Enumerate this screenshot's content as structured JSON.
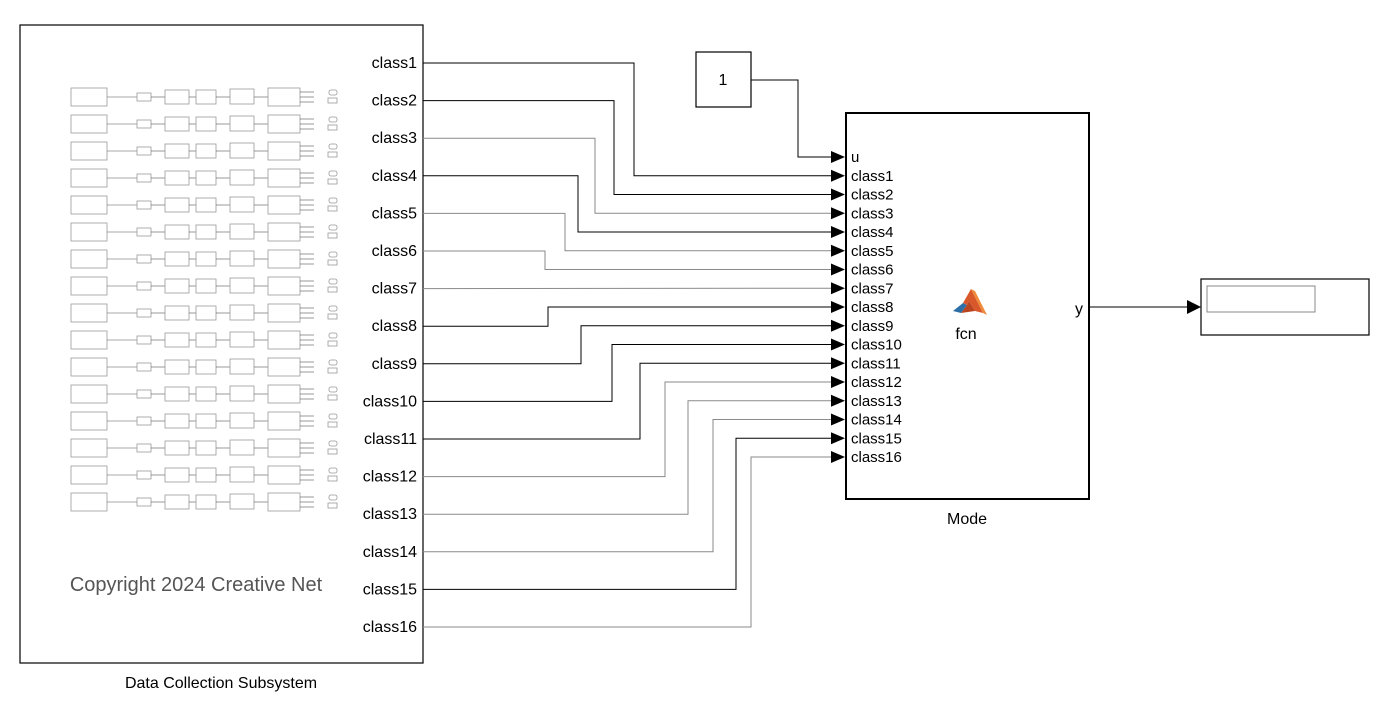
{
  "subsystem": {
    "caption": "Data Collection Subsystem",
    "copyright": "Copyright 2024 Creative Net",
    "output_ports": [
      "class1",
      "class2",
      "class3",
      "class4",
      "class5",
      "class6",
      "class7",
      "class8",
      "class9",
      "class10",
      "class11",
      "class12",
      "class13",
      "class14",
      "class15",
      "class16"
    ]
  },
  "constant": {
    "value": "1"
  },
  "function_block": {
    "caption": "Mode",
    "center_label": "fcn",
    "input_ports": [
      "u",
      "class1",
      "class2",
      "class3",
      "class4",
      "class5",
      "class6",
      "class7",
      "class8",
      "class9",
      "class10",
      "class11",
      "class12",
      "class13",
      "class14",
      "class15",
      "class16"
    ],
    "output_port": "y",
    "icon": "matlab-logo-icon"
  },
  "display": {
    "icon": "display-readout-icon"
  }
}
